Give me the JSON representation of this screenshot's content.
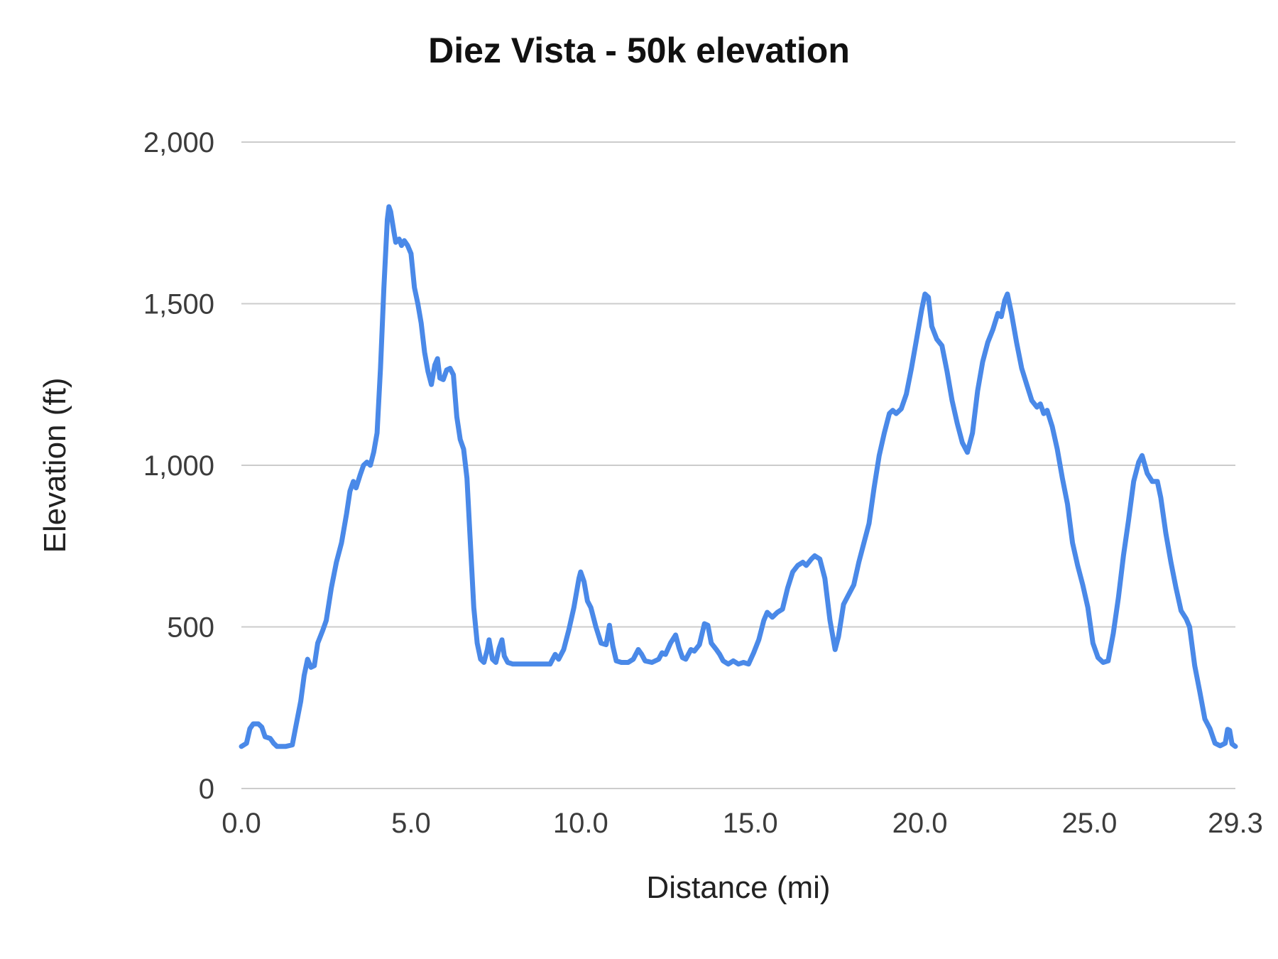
{
  "title": "Diez Vista - 50k elevation",
  "chart_data": {
    "type": "line",
    "title": "Diez Vista - 50k elevation",
    "xlabel": "Distance (mi)",
    "ylabel": "Elevation (ft)",
    "xlim": [
      0,
      29.3
    ],
    "ylim": [
      0,
      2000
    ],
    "grid": "horizontal",
    "legend": "none",
    "line_width": 7,
    "colors": {
      "line": "#4a89e8",
      "grid": "#cccccc",
      "tick_text": "#3c3c3c",
      "title_text": "#111111"
    },
    "x_ticks": [
      {
        "value": 0.0,
        "label": "0.0"
      },
      {
        "value": 5.0,
        "label": "5.0"
      },
      {
        "value": 10.0,
        "label": "10.0"
      },
      {
        "value": 15.0,
        "label": "15.0"
      },
      {
        "value": 20.0,
        "label": "20.0"
      },
      {
        "value": 25.0,
        "label": "25.0"
      },
      {
        "value": 29.3,
        "label": "29.3"
      }
    ],
    "y_ticks": [
      {
        "value": 0,
        "label": "0"
      },
      {
        "value": 500,
        "label": "500"
      },
      {
        "value": 1000,
        "label": "1,000"
      },
      {
        "value": 1500,
        "label": "1,500"
      },
      {
        "value": 2000,
        "label": "2,000"
      }
    ],
    "points": [
      [
        0.0,
        130
      ],
      [
        0.15,
        140
      ],
      [
        0.25,
        185
      ],
      [
        0.35,
        200
      ],
      [
        0.5,
        200
      ],
      [
        0.6,
        190
      ],
      [
        0.7,
        160
      ],
      [
        0.85,
        155
      ],
      [
        0.95,
        140
      ],
      [
        1.05,
        130
      ],
      [
        1.3,
        130
      ],
      [
        1.5,
        135
      ],
      [
        1.6,
        190
      ],
      [
        1.75,
        270
      ],
      [
        1.85,
        350
      ],
      [
        1.95,
        400
      ],
      [
        2.05,
        375
      ],
      [
        2.15,
        380
      ],
      [
        2.25,
        450
      ],
      [
        2.4,
        490
      ],
      [
        2.5,
        520
      ],
      [
        2.65,
        620
      ],
      [
        2.8,
        700
      ],
      [
        2.95,
        760
      ],
      [
        3.1,
        850
      ],
      [
        3.2,
        920
      ],
      [
        3.3,
        950
      ],
      [
        3.38,
        930
      ],
      [
        3.5,
        970
      ],
      [
        3.6,
        1000
      ],
      [
        3.7,
        1010
      ],
      [
        3.8,
        1000
      ],
      [
        3.9,
        1040
      ],
      [
        4.0,
        1100
      ],
      [
        4.1,
        1300
      ],
      [
        4.2,
        1550
      ],
      [
        4.3,
        1760
      ],
      [
        4.35,
        1800
      ],
      [
        4.4,
        1785
      ],
      [
        4.5,
        1720
      ],
      [
        4.55,
        1690
      ],
      [
        4.65,
        1700
      ],
      [
        4.72,
        1680
      ],
      [
        4.8,
        1695
      ],
      [
        4.9,
        1680
      ],
      [
        5.0,
        1655
      ],
      [
        5.1,
        1550
      ],
      [
        5.2,
        1500
      ],
      [
        5.3,
        1440
      ],
      [
        5.4,
        1350
      ],
      [
        5.5,
        1290
      ],
      [
        5.6,
        1250
      ],
      [
        5.7,
        1310
      ],
      [
        5.78,
        1330
      ],
      [
        5.85,
        1270
      ],
      [
        5.95,
        1265
      ],
      [
        6.05,
        1295
      ],
      [
        6.15,
        1300
      ],
      [
        6.25,
        1280
      ],
      [
        6.35,
        1150
      ],
      [
        6.45,
        1080
      ],
      [
        6.55,
        1050
      ],
      [
        6.65,
        960
      ],
      [
        6.75,
        760
      ],
      [
        6.85,
        560
      ],
      [
        6.95,
        450
      ],
      [
        7.05,
        400
      ],
      [
        7.15,
        390
      ],
      [
        7.25,
        430
      ],
      [
        7.3,
        460
      ],
      [
        7.4,
        400
      ],
      [
        7.5,
        390
      ],
      [
        7.6,
        435
      ],
      [
        7.68,
        460
      ],
      [
        7.75,
        410
      ],
      [
        7.85,
        390
      ],
      [
        8.0,
        385
      ],
      [
        8.3,
        385
      ],
      [
        8.6,
        385
      ],
      [
        8.9,
        385
      ],
      [
        9.1,
        385
      ],
      [
        9.25,
        415
      ],
      [
        9.35,
        400
      ],
      [
        9.5,
        430
      ],
      [
        9.65,
        490
      ],
      [
        9.8,
        560
      ],
      [
        9.95,
        650
      ],
      [
        10.0,
        670
      ],
      [
        10.1,
        640
      ],
      [
        10.2,
        580
      ],
      [
        10.3,
        560
      ],
      [
        10.45,
        500
      ],
      [
        10.6,
        450
      ],
      [
        10.75,
        445
      ],
      [
        10.85,
        505
      ],
      [
        10.95,
        440
      ],
      [
        11.05,
        395
      ],
      [
        11.2,
        390
      ],
      [
        11.4,
        390
      ],
      [
        11.55,
        400
      ],
      [
        11.7,
        430
      ],
      [
        11.8,
        415
      ],
      [
        11.9,
        395
      ],
      [
        12.1,
        390
      ],
      [
        12.3,
        400
      ],
      [
        12.4,
        420
      ],
      [
        12.5,
        415
      ],
      [
        12.65,
        450
      ],
      [
        12.8,
        475
      ],
      [
        12.9,
        435
      ],
      [
        13.0,
        405
      ],
      [
        13.1,
        400
      ],
      [
        13.25,
        430
      ],
      [
        13.35,
        425
      ],
      [
        13.5,
        445
      ],
      [
        13.65,
        510
      ],
      [
        13.75,
        505
      ],
      [
        13.85,
        450
      ],
      [
        14.0,
        430
      ],
      [
        14.1,
        415
      ],
      [
        14.2,
        395
      ],
      [
        14.35,
        385
      ],
      [
        14.5,
        395
      ],
      [
        14.65,
        385
      ],
      [
        14.8,
        390
      ],
      [
        14.95,
        385
      ],
      [
        15.1,
        420
      ],
      [
        15.25,
        460
      ],
      [
        15.4,
        520
      ],
      [
        15.5,
        545
      ],
      [
        15.65,
        530
      ],
      [
        15.8,
        545
      ],
      [
        15.95,
        555
      ],
      [
        16.1,
        620
      ],
      [
        16.25,
        670
      ],
      [
        16.4,
        690
      ],
      [
        16.55,
        700
      ],
      [
        16.65,
        690
      ],
      [
        16.8,
        710
      ],
      [
        16.9,
        720
      ],
      [
        17.05,
        710
      ],
      [
        17.2,
        650
      ],
      [
        17.35,
        520
      ],
      [
        17.5,
        430
      ],
      [
        17.6,
        470
      ],
      [
        17.75,
        570
      ],
      [
        17.9,
        600
      ],
      [
        18.05,
        630
      ],
      [
        18.2,
        700
      ],
      [
        18.35,
        760
      ],
      [
        18.5,
        820
      ],
      [
        18.65,
        930
      ],
      [
        18.8,
        1030
      ],
      [
        18.95,
        1100
      ],
      [
        19.1,
        1160
      ],
      [
        19.2,
        1170
      ],
      [
        19.3,
        1160
      ],
      [
        19.45,
        1175
      ],
      [
        19.6,
        1220
      ],
      [
        19.75,
        1300
      ],
      [
        19.9,
        1390
      ],
      [
        20.05,
        1480
      ],
      [
        20.15,
        1530
      ],
      [
        20.25,
        1520
      ],
      [
        20.35,
        1430
      ],
      [
        20.5,
        1390
      ],
      [
        20.65,
        1370
      ],
      [
        20.8,
        1290
      ],
      [
        20.95,
        1200
      ],
      [
        21.1,
        1130
      ],
      [
        21.25,
        1070
      ],
      [
        21.4,
        1040
      ],
      [
        21.55,
        1100
      ],
      [
        21.7,
        1230
      ],
      [
        21.85,
        1320
      ],
      [
        22.0,
        1380
      ],
      [
        22.15,
        1420
      ],
      [
        22.3,
        1470
      ],
      [
        22.4,
        1460
      ],
      [
        22.5,
        1510
      ],
      [
        22.58,
        1530
      ],
      [
        22.7,
        1470
      ],
      [
        22.85,
        1380
      ],
      [
        23.0,
        1300
      ],
      [
        23.15,
        1250
      ],
      [
        23.3,
        1200
      ],
      [
        23.45,
        1180
      ],
      [
        23.55,
        1190
      ],
      [
        23.65,
        1160
      ],
      [
        23.75,
        1170
      ],
      [
        23.9,
        1120
      ],
      [
        24.05,
        1050
      ],
      [
        24.2,
        960
      ],
      [
        24.35,
        880
      ],
      [
        24.5,
        760
      ],
      [
        24.65,
        690
      ],
      [
        24.8,
        630
      ],
      [
        24.95,
        560
      ],
      [
        25.1,
        450
      ],
      [
        25.25,
        405
      ],
      [
        25.4,
        390
      ],
      [
        25.55,
        395
      ],
      [
        25.7,
        480
      ],
      [
        25.85,
        590
      ],
      [
        26.0,
        720
      ],
      [
        26.15,
        830
      ],
      [
        26.3,
        950
      ],
      [
        26.45,
        1010
      ],
      [
        26.55,
        1030
      ],
      [
        26.7,
        975
      ],
      [
        26.85,
        950
      ],
      [
        27.0,
        950
      ],
      [
        27.1,
        900
      ],
      [
        27.25,
        790
      ],
      [
        27.4,
        700
      ],
      [
        27.55,
        620
      ],
      [
        27.7,
        550
      ],
      [
        27.85,
        525
      ],
      [
        27.95,
        500
      ],
      [
        28.1,
        380
      ],
      [
        28.25,
        300
      ],
      [
        28.4,
        215
      ],
      [
        28.55,
        185
      ],
      [
        28.7,
        140
      ],
      [
        28.85,
        132
      ],
      [
        29.0,
        140
      ],
      [
        29.07,
        183
      ],
      [
        29.13,
        180
      ],
      [
        29.2,
        138
      ],
      [
        29.3,
        130
      ]
    ]
  }
}
